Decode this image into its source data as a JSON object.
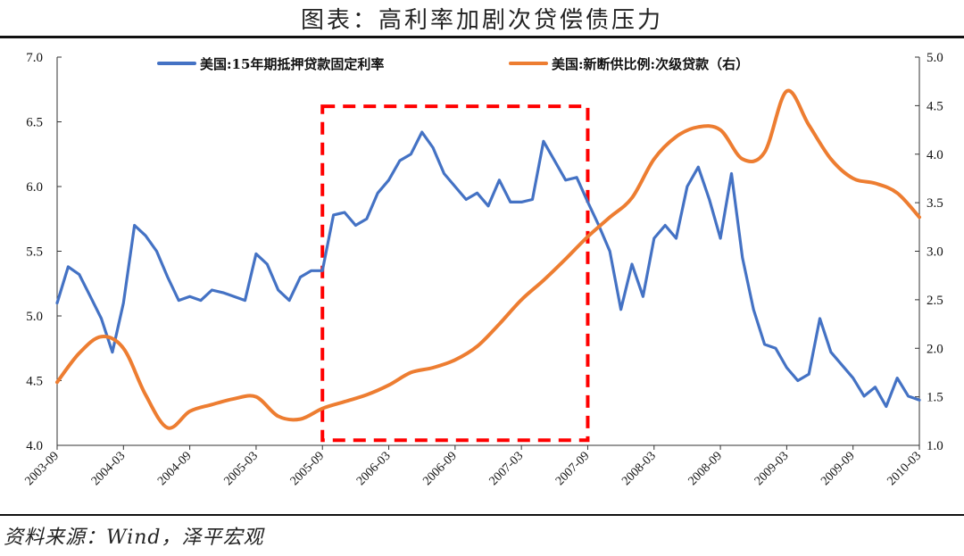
{
  "title": "图表：高利率加剧次贷偿债压力",
  "source": "资料来源：Wind，泽平宏观",
  "colors": {
    "series1": "#4472C4",
    "series2": "#ED7D31",
    "highlight": "#FF0000"
  },
  "chart_data": {
    "type": "line",
    "title": "图表：高利率加剧次贷偿债压力",
    "legend_position": "top",
    "grid": false,
    "x_ticks": [
      "2003-09",
      "2004-03",
      "2004-09",
      "2005-03",
      "2005-09",
      "2006-03",
      "2006-09",
      "2007-03",
      "2007-09",
      "2008-03",
      "2008-09",
      "2009-03",
      "2009-09",
      "2010-03"
    ],
    "xlim": [
      "2003-09",
      "2010-03"
    ],
    "y_left": {
      "ticks": [
        "4.0",
        "4.5",
        "5.0",
        "5.5",
        "6.0",
        "6.5",
        "7.0"
      ],
      "lim": [
        4.0,
        7.0
      ]
    },
    "y_right": {
      "ticks": [
        "1.0",
        "1.5",
        "2.0",
        "2.5",
        "3.0",
        "3.5",
        "4.0",
        "4.5",
        "5.0"
      ],
      "lim": [
        1.0,
        5.0
      ]
    },
    "highlight_box": {
      "x": [
        "2005-09",
        "2007-09"
      ],
      "y": [
        4.04,
        6.62
      ],
      "axis": "left"
    },
    "series": [
      {
        "name": "美国:15年期抵押贷款固定利率",
        "axis": "left",
        "color": "#4472C4",
        "x": [
          "2003-09",
          "2003-10",
          "2003-11",
          "2003-12",
          "2004-01",
          "2004-02",
          "2004-03",
          "2004-04",
          "2004-05",
          "2004-06",
          "2004-07",
          "2004-08",
          "2004-09",
          "2004-10",
          "2004-11",
          "2004-12",
          "2005-01",
          "2005-02",
          "2005-03",
          "2005-04",
          "2005-05",
          "2005-06",
          "2005-07",
          "2005-08",
          "2005-09",
          "2005-10",
          "2005-11",
          "2005-12",
          "2006-01",
          "2006-02",
          "2006-03",
          "2006-04",
          "2006-05",
          "2006-06",
          "2006-07",
          "2006-08",
          "2006-09",
          "2006-10",
          "2006-11",
          "2006-12",
          "2007-01",
          "2007-02",
          "2007-03",
          "2007-04",
          "2007-05",
          "2007-06",
          "2007-07",
          "2007-08",
          "2007-09",
          "2007-10",
          "2007-11",
          "2007-12",
          "2008-01",
          "2008-02",
          "2008-03",
          "2008-04",
          "2008-05",
          "2008-06",
          "2008-07",
          "2008-08",
          "2008-09",
          "2008-10",
          "2008-11",
          "2008-12",
          "2009-01",
          "2009-02",
          "2009-03",
          "2009-04",
          "2009-05",
          "2009-06",
          "2009-07",
          "2009-08",
          "2009-09",
          "2009-10",
          "2009-11",
          "2009-12",
          "2010-01",
          "2010-02",
          "2010-03"
        ],
        "values": [
          5.1,
          5.38,
          5.32,
          5.15,
          4.98,
          4.72,
          5.1,
          5.7,
          5.62,
          5.5,
          5.3,
          5.12,
          5.15,
          5.12,
          5.2,
          5.18,
          5.15,
          5.12,
          5.48,
          5.4,
          5.2,
          5.12,
          5.3,
          5.35,
          5.35,
          5.78,
          5.8,
          5.7,
          5.75,
          5.95,
          6.05,
          6.2,
          6.25,
          6.42,
          6.3,
          6.1,
          6.0,
          5.9,
          5.95,
          5.85,
          6.05,
          5.88,
          5.88,
          5.9,
          6.35,
          6.2,
          6.05,
          6.07,
          5.88,
          5.7,
          5.5,
          5.05,
          5.4,
          5.15,
          5.6,
          5.7,
          5.6,
          6.0,
          6.15,
          5.9,
          5.6,
          6.1,
          5.45,
          5.05,
          4.78,
          4.75,
          4.6,
          4.5,
          4.55,
          4.98,
          4.72,
          4.62,
          4.52,
          4.38,
          4.45,
          4.3,
          4.52,
          4.38,
          4.35
        ]
      },
      {
        "name": "美国:新断供比例:次级贷款（右）",
        "axis": "right",
        "color": "#ED7D31",
        "x": [
          "2003-09",
          "2003-11",
          "2004-01",
          "2004-03",
          "2004-05",
          "2004-07",
          "2004-09",
          "2004-11",
          "2005-01",
          "2005-03",
          "2005-05",
          "2005-07",
          "2005-09",
          "2005-11",
          "2006-01",
          "2006-03",
          "2006-05",
          "2006-07",
          "2006-09",
          "2006-11",
          "2007-01",
          "2007-03",
          "2007-05",
          "2007-07",
          "2007-09",
          "2007-11",
          "2008-01",
          "2008-03",
          "2008-05",
          "2008-07",
          "2008-09",
          "2008-11",
          "2009-01",
          "2009-03",
          "2009-05",
          "2009-07",
          "2009-09",
          "2009-11",
          "2010-01",
          "2010-03"
        ],
        "values": [
          1.65,
          1.95,
          2.12,
          2.0,
          1.52,
          1.18,
          1.35,
          1.42,
          1.48,
          1.5,
          1.3,
          1.27,
          1.38,
          1.45,
          1.52,
          1.62,
          1.75,
          1.8,
          1.88,
          2.02,
          2.25,
          2.5,
          2.7,
          2.92,
          3.15,
          3.35,
          3.55,
          3.95,
          4.18,
          4.28,
          4.25,
          3.95,
          4.02,
          4.65,
          4.3,
          3.95,
          3.75,
          3.7,
          3.6,
          3.35
        ]
      }
    ]
  }
}
